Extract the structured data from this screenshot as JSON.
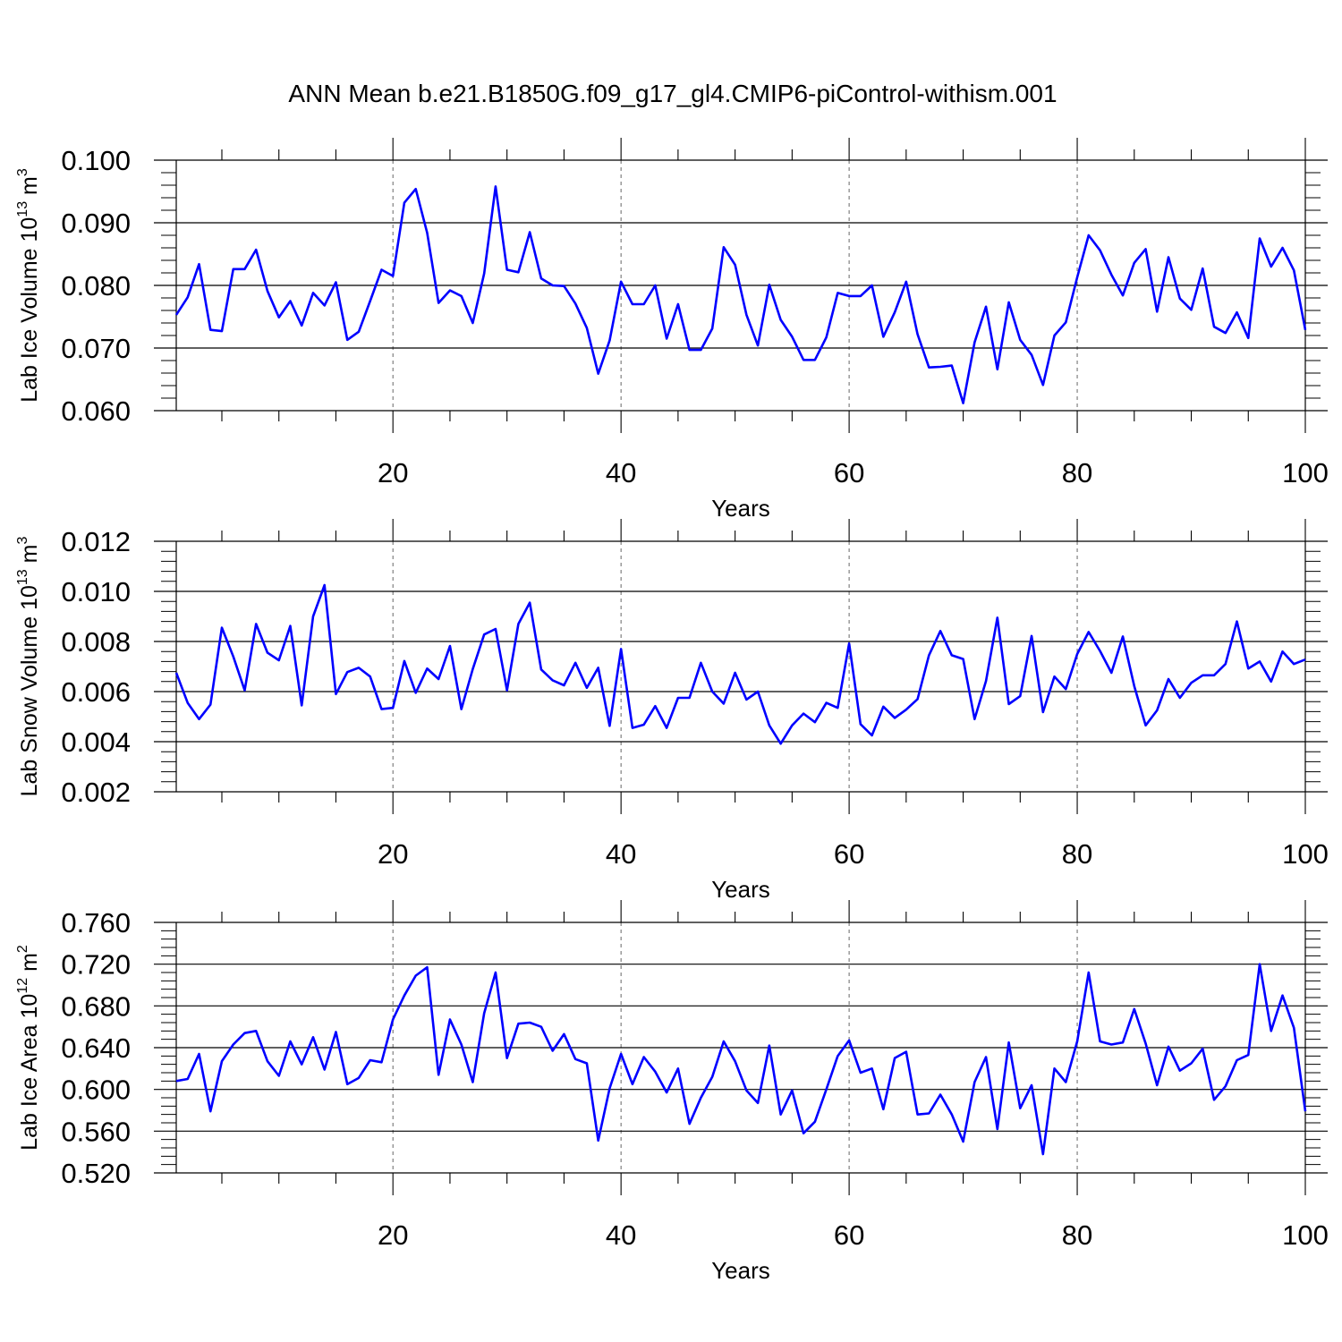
{
  "figure_title": "ANN Mean b.e21.B1850G.f09_g17_gl4.CMIP6-piControl-withism.001",
  "colors": {
    "series": "#0000ff",
    "axis": "#000000",
    "grid": "#666666"
  },
  "chart_data": [
    {
      "type": "line",
      "xlabel": "Years",
      "ylabel": {
        "main": "Lab Ice Volume 10",
        "exp": "13",
        "unit": " m",
        "unit_exp": "3"
      },
      "xlim": [
        1,
        100
      ],
      "ylim": [
        0.06,
        0.1
      ],
      "xticks": [
        20,
        40,
        60,
        80,
        100
      ],
      "yticks": [
        0.06,
        0.07,
        0.08,
        0.09,
        0.1
      ],
      "ytick_labels": [
        "0.060",
        "0.070",
        "0.080",
        "0.090",
        "0.100"
      ],
      "grid_x": true,
      "x": [
        1,
        2,
        3,
        4,
        5,
        6,
        7,
        8,
        9,
        10,
        11,
        12,
        13,
        14,
        15,
        16,
        17,
        18,
        19,
        20,
        21,
        22,
        23,
        24,
        25,
        26,
        27,
        28,
        29,
        30,
        31,
        32,
        33,
        34,
        35,
        36,
        37,
        38,
        39,
        40,
        41,
        42,
        43,
        44,
        45,
        46,
        47,
        48,
        49,
        50,
        51,
        52,
        53,
        54,
        55,
        56,
        57,
        58,
        59,
        60,
        61,
        62,
        63,
        64,
        65,
        66,
        67,
        68,
        69,
        70,
        71,
        72,
        73,
        74,
        75,
        76,
        77,
        78,
        79,
        80,
        81,
        82,
        83,
        84,
        85,
        86,
        87,
        88,
        89,
        90,
        91,
        92,
        93,
        94,
        95,
        96,
        97,
        98,
        99,
        100
      ],
      "series": [
        {
          "values": [
            0.0753,
            0.0781,
            0.0834,
            0.0729,
            0.0727,
            0.0826,
            0.0826,
            0.0857,
            0.0791,
            0.0749,
            0.0775,
            0.0736,
            0.0788,
            0.0768,
            0.0805,
            0.0713,
            0.0726,
            0.0775,
            0.0825,
            0.0815,
            0.0932,
            0.0954,
            0.0884,
            0.0772,
            0.0792,
            0.0783,
            0.074,
            0.0819,
            0.0958,
            0.0825,
            0.0821,
            0.0885,
            0.0811,
            0.08,
            0.0799,
            0.0771,
            0.0732,
            0.0659,
            0.0712,
            0.0806,
            0.077,
            0.077,
            0.08,
            0.0715,
            0.077,
            0.0697,
            0.0697,
            0.0731,
            0.0861,
            0.0833,
            0.0753,
            0.0704,
            0.0801,
            0.0745,
            0.0718,
            0.0681,
            0.0681,
            0.0717,
            0.0788,
            0.0783,
            0.0783,
            0.08,
            0.0718,
            0.0757,
            0.0806,
            0.0722,
            0.0669,
            0.067,
            0.0672,
            0.0612,
            0.0709,
            0.0766,
            0.0666,
            0.0773,
            0.0713,
            0.0689,
            0.0641,
            0.072,
            0.0741,
            0.0813,
            0.088,
            0.0856,
            0.0817,
            0.0784,
            0.0836,
            0.0858,
            0.0758,
            0.0845,
            0.0779,
            0.0761,
            0.0827,
            0.0734,
            0.0724,
            0.0757,
            0.0716,
            0.0875,
            0.083,
            0.086,
            0.0824,
            0.0729
          ]
        }
      ]
    },
    {
      "type": "line",
      "xlabel": "Years",
      "ylabel": {
        "main": "Lab Snow Volume 10",
        "exp": "13",
        "unit": " m",
        "unit_exp": "3"
      },
      "xlim": [
        1,
        100
      ],
      "ylim": [
        0.002,
        0.012
      ],
      "xticks": [
        20,
        40,
        60,
        80,
        100
      ],
      "yticks": [
        0.002,
        0.004,
        0.006,
        0.008,
        0.01,
        0.012
      ],
      "ytick_labels": [
        "0.002",
        "0.004",
        "0.006",
        "0.008",
        "0.010",
        "0.012"
      ],
      "grid_x": true,
      "x": [
        1,
        2,
        3,
        4,
        5,
        6,
        7,
        8,
        9,
        10,
        11,
        12,
        13,
        14,
        15,
        16,
        17,
        18,
        19,
        20,
        21,
        22,
        23,
        24,
        25,
        26,
        27,
        28,
        29,
        30,
        31,
        32,
        33,
        34,
        35,
        36,
        37,
        38,
        39,
        40,
        41,
        42,
        43,
        44,
        45,
        46,
        47,
        48,
        49,
        50,
        51,
        52,
        53,
        54,
        55,
        56,
        57,
        58,
        59,
        60,
        61,
        62,
        63,
        64,
        65,
        66,
        67,
        68,
        69,
        70,
        71,
        72,
        73,
        74,
        75,
        76,
        77,
        78,
        79,
        80,
        81,
        82,
        83,
        84,
        85,
        86,
        87,
        88,
        89,
        90,
        91,
        92,
        93,
        94,
        95,
        96,
        97,
        98,
        99,
        100
      ],
      "series": [
        {
          "values": [
            0.00675,
            0.00555,
            0.0049,
            0.00548,
            0.00855,
            0.0074,
            0.00605,
            0.0087,
            0.00755,
            0.00725,
            0.00862,
            0.00545,
            0.009,
            0.01025,
            0.0059,
            0.00678,
            0.00695,
            0.0066,
            0.0053,
            0.00535,
            0.00722,
            0.00595,
            0.00692,
            0.0065,
            0.00782,
            0.0053,
            0.0069,
            0.00828,
            0.0085,
            0.00605,
            0.0087,
            0.00955,
            0.00688,
            0.00645,
            0.00625,
            0.00715,
            0.00615,
            0.00695,
            0.00463,
            0.0077,
            0.00455,
            0.00468,
            0.00542,
            0.00455,
            0.00575,
            0.00575,
            0.00715,
            0.006,
            0.00552,
            0.00675,
            0.00568,
            0.006,
            0.00465,
            0.00392,
            0.00465,
            0.00512,
            0.00478,
            0.00555,
            0.00535,
            0.00792,
            0.0047,
            0.00425,
            0.0054,
            0.00495,
            0.00528,
            0.0057,
            0.00745,
            0.00842,
            0.00745,
            0.0073,
            0.0049,
            0.00642,
            0.00895,
            0.0055,
            0.00582,
            0.00822,
            0.00518,
            0.0066,
            0.0061,
            0.0075,
            0.00838,
            0.00762,
            0.00675,
            0.0082,
            0.00622,
            0.00465,
            0.00525,
            0.0065,
            0.00575,
            0.00635,
            0.00665,
            0.00665,
            0.0071,
            0.0088,
            0.00692,
            0.0072,
            0.0064,
            0.0076,
            0.0071,
            0.00728
          ]
        }
      ]
    },
    {
      "type": "line",
      "xlabel": "Years",
      "ylabel": {
        "main": "Lab Ice Area 10",
        "exp": "12",
        "unit": " m",
        "unit_exp": "2"
      },
      "xlim": [
        1,
        100
      ],
      "ylim": [
        0.52,
        0.76
      ],
      "xticks": [
        20,
        40,
        60,
        80,
        100
      ],
      "yticks": [
        0.52,
        0.56,
        0.6,
        0.64,
        0.68,
        0.72,
        0.76
      ],
      "ytick_labels": [
        "0.520",
        "0.560",
        "0.600",
        "0.640",
        "0.680",
        "0.720",
        "0.760"
      ],
      "grid_x": true,
      "x": [
        1,
        2,
        3,
        4,
        5,
        6,
        7,
        8,
        9,
        10,
        11,
        12,
        13,
        14,
        15,
        16,
        17,
        18,
        19,
        20,
        21,
        22,
        23,
        24,
        25,
        26,
        27,
        28,
        29,
        30,
        31,
        32,
        33,
        34,
        35,
        36,
        37,
        38,
        39,
        40,
        41,
        42,
        43,
        44,
        45,
        46,
        47,
        48,
        49,
        50,
        51,
        52,
        53,
        54,
        55,
        56,
        57,
        58,
        59,
        60,
        61,
        62,
        63,
        64,
        65,
        66,
        67,
        68,
        69,
        70,
        71,
        72,
        73,
        74,
        75,
        76,
        77,
        78,
        79,
        80,
        81,
        82,
        83,
        84,
        85,
        86,
        87,
        88,
        89,
        90,
        91,
        92,
        93,
        94,
        95,
        96,
        97,
        98,
        99,
        100
      ],
      "series": [
        {
          "values": [
            0.608,
            0.61,
            0.634,
            0.579,
            0.627,
            0.643,
            0.654,
            0.656,
            0.627,
            0.613,
            0.646,
            0.624,
            0.65,
            0.619,
            0.655,
            0.605,
            0.611,
            0.628,
            0.626,
            0.667,
            0.69,
            0.709,
            0.717,
            0.614,
            0.667,
            0.643,
            0.607,
            0.673,
            0.712,
            0.63,
            0.663,
            0.664,
            0.66,
            0.637,
            0.653,
            0.629,
            0.625,
            0.551,
            0.601,
            0.634,
            0.605,
            0.631,
            0.617,
            0.597,
            0.62,
            0.567,
            0.592,
            0.612,
            0.646,
            0.627,
            0.599,
            0.587,
            0.642,
            0.576,
            0.599,
            0.558,
            0.569,
            0.6,
            0.632,
            0.647,
            0.616,
            0.62,
            0.581,
            0.63,
            0.636,
            0.576,
            0.577,
            0.595,
            0.576,
            0.55,
            0.607,
            0.631,
            0.562,
            0.645,
            0.582,
            0.604,
            0.538,
            0.62,
            0.607,
            0.646,
            0.712,
            0.646,
            0.643,
            0.645,
            0.677,
            0.644,
            0.604,
            0.641,
            0.618,
            0.625,
            0.639,
            0.59,
            0.603,
            0.628,
            0.633,
            0.72,
            0.656,
            0.69,
            0.659,
            0.579
          ]
        }
      ]
    }
  ]
}
